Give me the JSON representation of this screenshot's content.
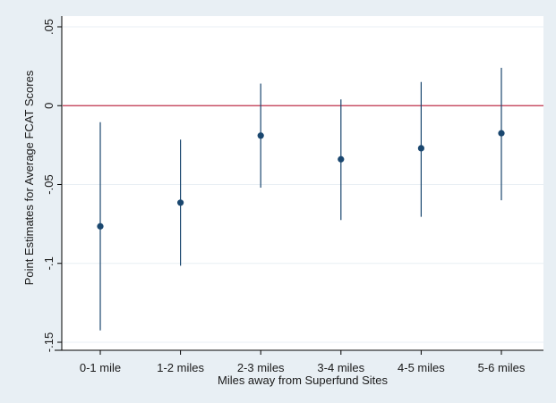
{
  "chart_data": {
    "type": "scatter",
    "title": "",
    "xlabel": "Miles away from Superfund Sites",
    "ylabel": "Point Estimates for Average FCAT Scores",
    "ylim": [
      -0.15,
      0.05
    ],
    "yticks": [
      {
        "value": 0.05,
        "label": ".05"
      },
      {
        "value": 0,
        "label": "0"
      },
      {
        "value": -0.05,
        "label": "-.05"
      },
      {
        "value": -0.1,
        "label": "-.1"
      },
      {
        "value": -0.15,
        "label": "-.15"
      }
    ],
    "grid": true,
    "reference_line": {
      "y": 0,
      "color": "#c0304a"
    },
    "colors": {
      "background": "#e8eff4",
      "plot_background": "#ffffff",
      "gridline": "#e8eff4",
      "marker": "#1a476f",
      "error_bar": "#1a476f",
      "axis": "#000000"
    },
    "categories": [
      "0-1 mile",
      "1-2 miles",
      "2-3 miles",
      "3-4 miles",
      "4-5 miles",
      "5-6 miles"
    ],
    "points": [
      {
        "category": "0-1 mile",
        "estimate": -0.0765,
        "ci_low": -0.1425,
        "ci_high": -0.0105
      },
      {
        "category": "1-2 miles",
        "estimate": -0.0615,
        "ci_low": -0.1015,
        "ci_high": -0.0215
      },
      {
        "category": "2-3 miles",
        "estimate": -0.019,
        "ci_low": -0.052,
        "ci_high": 0.014
      },
      {
        "category": "3-4 miles",
        "estimate": -0.034,
        "ci_low": -0.0725,
        "ci_high": 0.004
      },
      {
        "category": "4-5 miles",
        "estimate": -0.027,
        "ci_low": -0.0705,
        "ci_high": 0.015
      },
      {
        "category": "5-6 miles",
        "estimate": -0.0175,
        "ci_low": -0.06,
        "ci_high": 0.024
      }
    ]
  }
}
